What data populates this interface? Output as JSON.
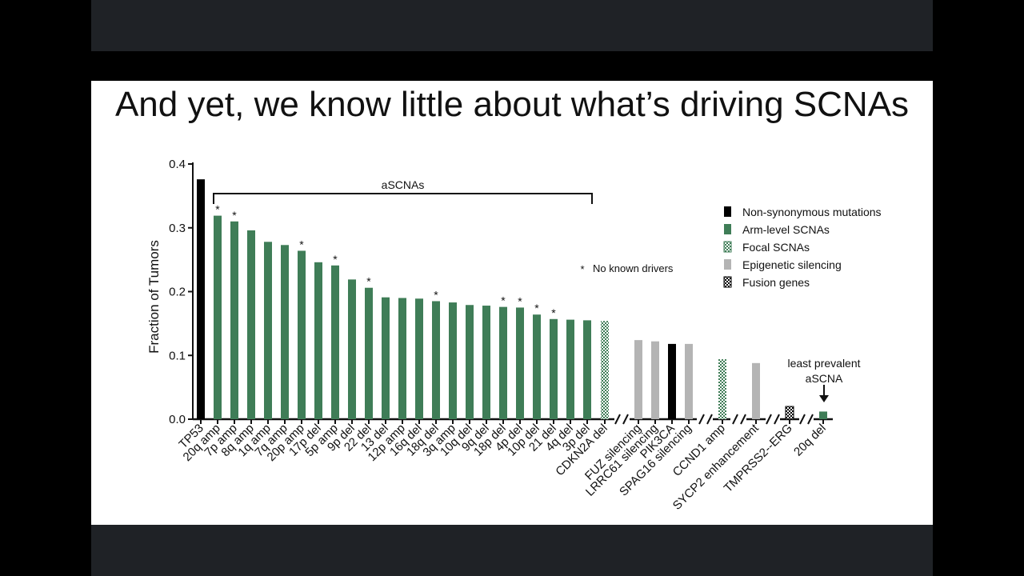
{
  "slide": {
    "title": "And yet, we know little about what’s driving SCNAs"
  },
  "chart_data": {
    "type": "bar",
    "ylabel": "Fraction of Tumors",
    "ylim": [
      0,
      0.4
    ],
    "yticks": [
      "0.0",
      "0.1",
      "0.2",
      "0.3",
      "0.4"
    ],
    "categories": [
      "TP53",
      "20q amp",
      "7p amp",
      "8q amp",
      "1q amp",
      "7q amp",
      "20p amp",
      "17p del",
      "5p amp",
      "9p del",
      "22 del",
      "13 del",
      "12p amp",
      "16q del",
      "18q del",
      "3q amp",
      "10q del",
      "9q del",
      "18p del",
      "4p del",
      "10p del",
      "21 del",
      "4q del",
      "3p del",
      "CDKN2A del",
      "FUZ silencing",
      "LRRC61 silencing",
      "PIK3CA",
      "SPAG16 silencing",
      "CCND1 amp",
      "SYCP2 enhancement",
      "TMPRSS2--ERG",
      "20q del"
    ],
    "values": [
      0.376,
      0.319,
      0.31,
      0.296,
      0.278,
      0.273,
      0.264,
      0.246,
      0.241,
      0.219,
      0.206,
      0.191,
      0.19,
      0.189,
      0.185,
      0.183,
      0.179,
      0.178,
      0.176,
      0.175,
      0.164,
      0.157,
      0.156,
      0.155,
      0.154,
      0.124,
      0.122,
      0.118,
      0.118,
      0.094,
      0.088,
      0.02,
      0.012
    ],
    "bar_types": [
      "Non-synonymous mutations",
      "Arm-level SCNAs",
      "Arm-level SCNAs",
      "Arm-level SCNAs",
      "Arm-level SCNAs",
      "Arm-level SCNAs",
      "Arm-level SCNAs",
      "Arm-level SCNAs",
      "Arm-level SCNAs",
      "Arm-level SCNAs",
      "Arm-level SCNAs",
      "Arm-level SCNAs",
      "Arm-level SCNAs",
      "Arm-level SCNAs",
      "Arm-level SCNAs",
      "Arm-level SCNAs",
      "Arm-level SCNAs",
      "Arm-level SCNAs",
      "Arm-level SCNAs",
      "Arm-level SCNAs",
      "Arm-level SCNAs",
      "Arm-level SCNAs",
      "Arm-level SCNAs",
      "Arm-level SCNAs",
      "Focal SCNAs",
      "Epigenetic silencing",
      "Epigenetic silencing",
      "Non-synonymous mutations",
      "Epigenetic silencing",
      "Focal SCNAs",
      "Epigenetic silencing",
      "Fusion genes",
      "Arm-level SCNAs"
    ],
    "no_known_drivers": [
      "20q amp",
      "7p amp",
      "20p amp",
      "5p amp",
      "22 del",
      "18q del",
      "18p del",
      "4p del",
      "10p del",
      "21 del"
    ],
    "legend": [
      {
        "name": "Non-synonymous mutations",
        "style": "solid",
        "color": "#000000"
      },
      {
        "name": "Arm-level SCNAs",
        "style": "solid",
        "color": "#3f7d57"
      },
      {
        "name": "Focal SCNAs",
        "style": "checker",
        "color": "#3f7d57"
      },
      {
        "name": "Epigenetic silencing",
        "style": "solid",
        "color": "#b4b4b4"
      },
      {
        "name": "Fusion genes",
        "style": "checker",
        "color": "#000000"
      }
    ],
    "legend_position": "top-right",
    "star_note": "No known drivers",
    "bracket_label": "aSCNAs",
    "annotation": "least prevalent aSCNA",
    "grid": false
  }
}
